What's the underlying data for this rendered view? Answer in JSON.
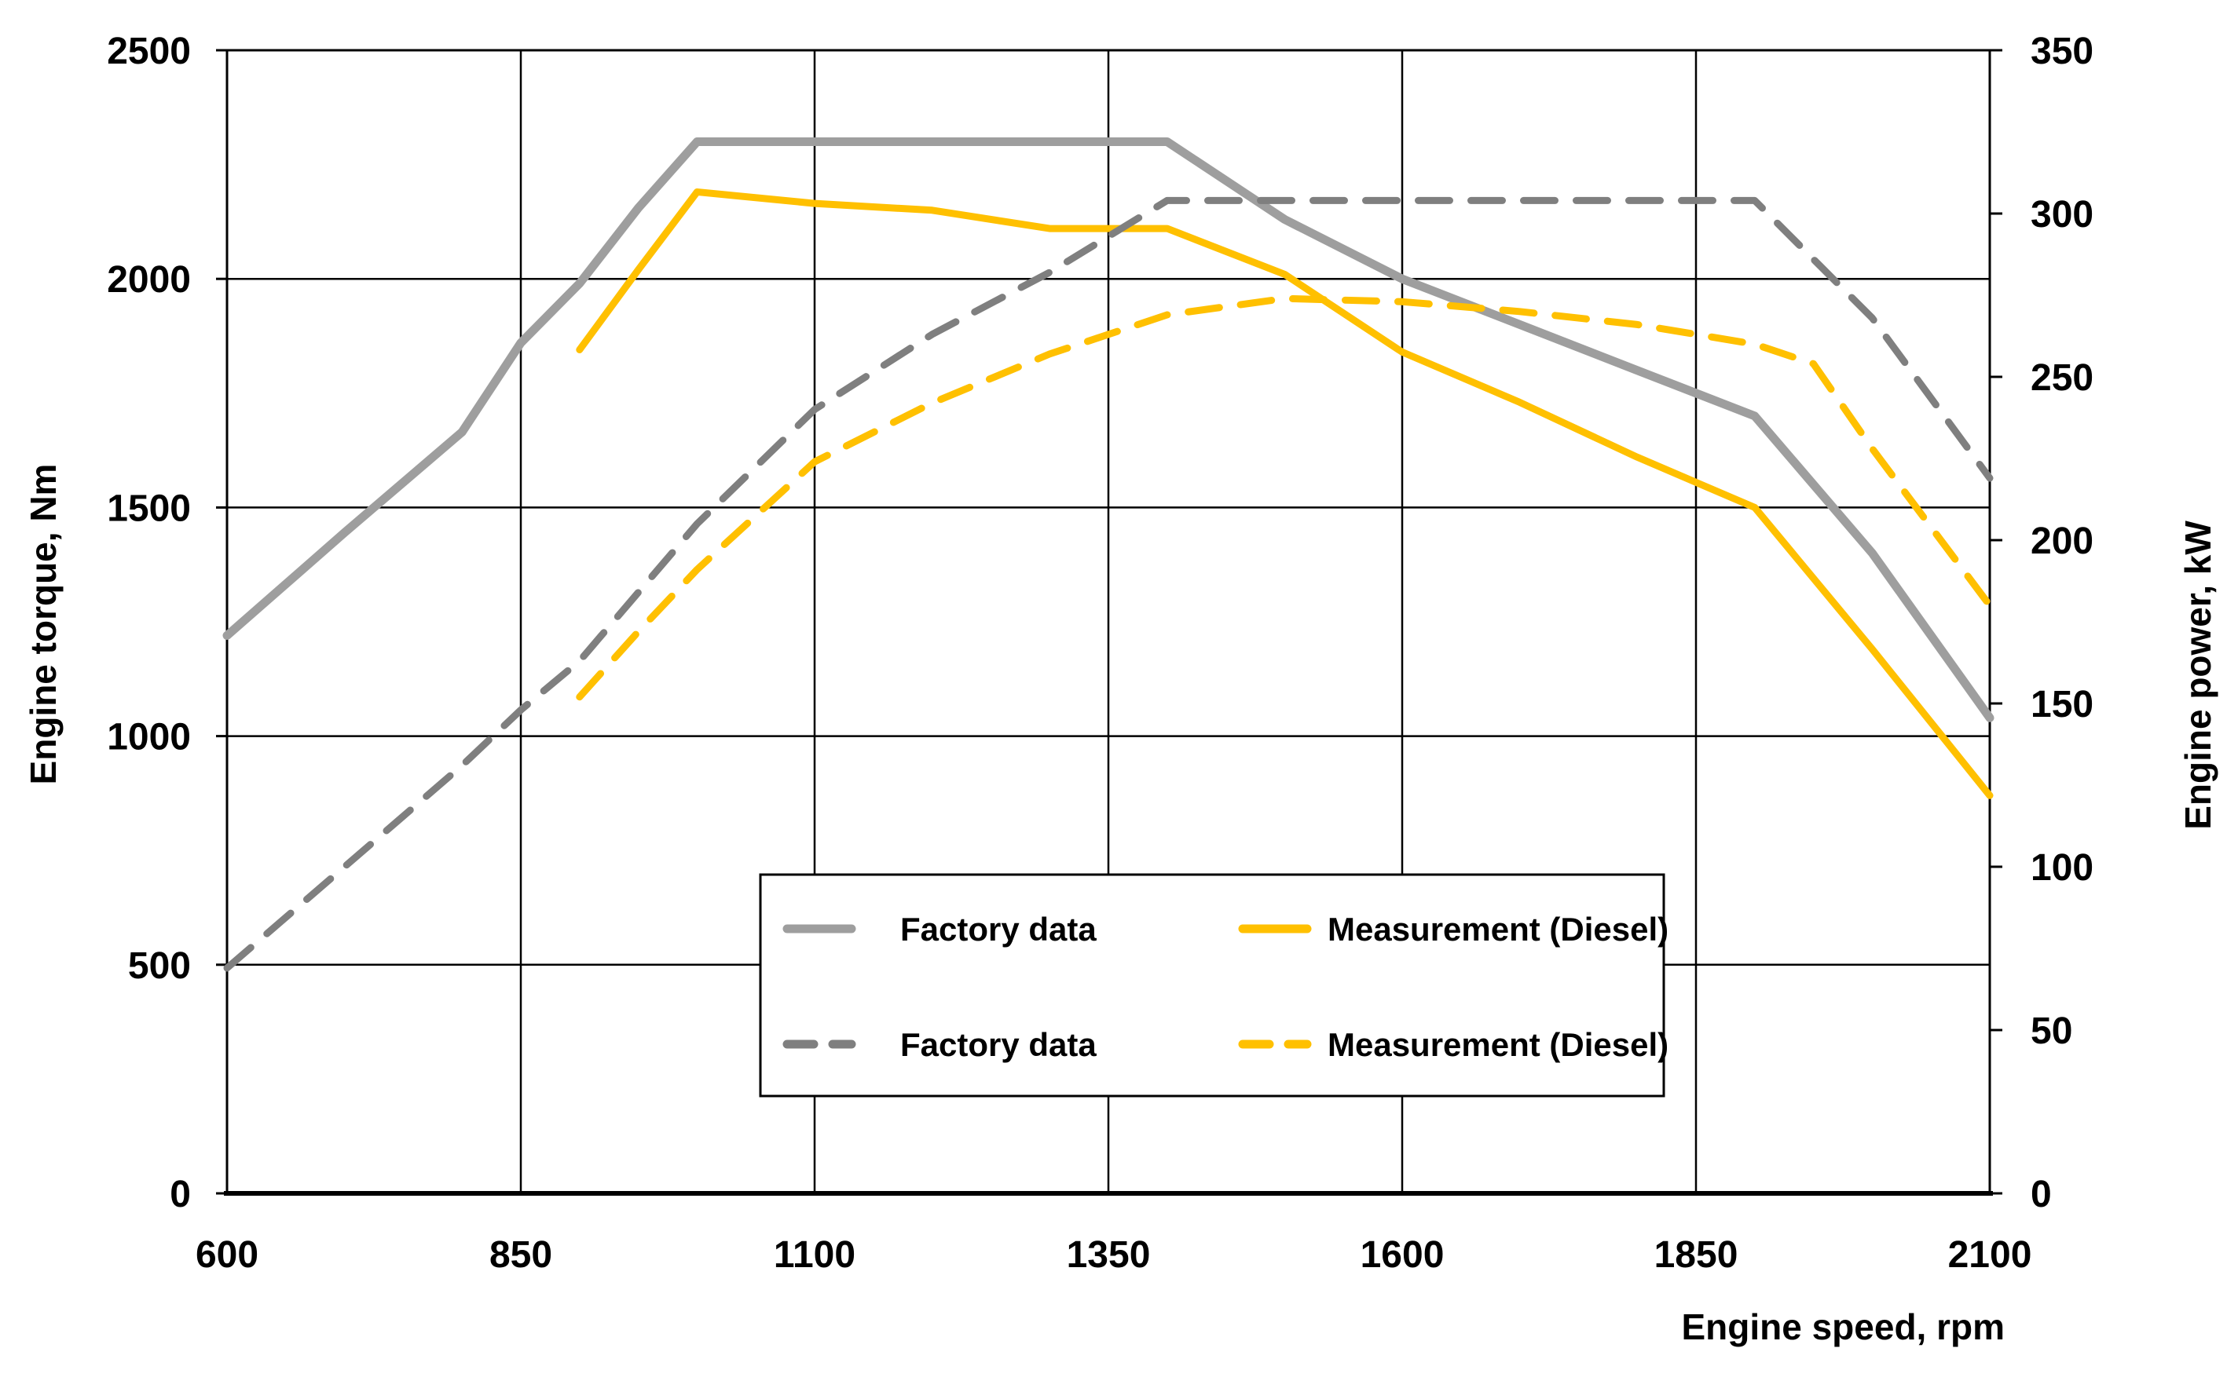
{
  "chart_data": {
    "type": "line",
    "title": "",
    "xlabel": "Engine speed, rpm",
    "ylabel_left": "Engine torque, Nm",
    "ylabel_right": "Engine power, kW",
    "grid": "on",
    "background": "#ffffff",
    "x": {
      "min": 600,
      "max": 2100,
      "ticks": [
        600,
        850,
        1100,
        1350,
        1600,
        1850,
        2100
      ]
    },
    "y_left": {
      "min": 0,
      "max": 2500,
      "ticks": [
        0,
        500,
        1000,
        1500,
        2000,
        2500
      ]
    },
    "y_right": {
      "min": 0,
      "max": 350,
      "ticks": [
        0,
        50,
        100,
        150,
        200,
        250,
        300,
        350
      ]
    },
    "colors": {
      "factory_solid": "#9E9E9E",
      "factory_dashed": "#7F7F7F",
      "measurement": "#FFC000",
      "axis": "#000000"
    },
    "series": [
      {
        "id": "factory-torque",
        "name": "Factory data",
        "axis": "left",
        "unit": "Nm",
        "style": "solid",
        "color": "#9E9E9E",
        "width": 11,
        "points": [
          [
            600,
            1220
          ],
          [
            700,
            1445
          ],
          [
            800,
            1665
          ],
          [
            850,
            1860
          ],
          [
            900,
            1990
          ],
          [
            950,
            2155
          ],
          [
            1000,
            2300
          ],
          [
            1400,
            2300
          ],
          [
            1500,
            2130
          ],
          [
            1600,
            2000
          ],
          [
            1700,
            1900
          ],
          [
            1800,
            1800
          ],
          [
            1900,
            1700
          ],
          [
            2000,
            1400
          ],
          [
            2100,
            1040
          ]
        ]
      },
      {
        "id": "measurement-torque",
        "name": "Measurement (Diesel)",
        "axis": "left",
        "unit": "Nm",
        "style": "solid",
        "color": "#FFC000",
        "width": 9,
        "points": [
          [
            900,
            1845
          ],
          [
            950,
            2020
          ],
          [
            1000,
            2190
          ],
          [
            1100,
            2165
          ],
          [
            1200,
            2150
          ],
          [
            1300,
            2110
          ],
          [
            1400,
            2110
          ],
          [
            1500,
            2010
          ],
          [
            1600,
            1840
          ],
          [
            1700,
            1730
          ],
          [
            1800,
            1610
          ],
          [
            1900,
            1500
          ],
          [
            2000,
            1190
          ],
          [
            2100,
            870
          ]
        ]
      },
      {
        "id": "factory-power",
        "name": "Factory data",
        "axis": "right",
        "unit": "kW",
        "style": "dashed",
        "color": "#7F7F7F",
        "width": 9,
        "points": [
          [
            600,
            69
          ],
          [
            700,
            100
          ],
          [
            800,
            131
          ],
          [
            850,
            148
          ],
          [
            900,
            163
          ],
          [
            1000,
            205
          ],
          [
            1100,
            240
          ],
          [
            1200,
            263
          ],
          [
            1300,
            282
          ],
          [
            1350,
            293
          ],
          [
            1400,
            304
          ],
          [
            1900,
            304
          ],
          [
            2000,
            268
          ],
          [
            2100,
            219
          ]
        ]
      },
      {
        "id": "measurement-power",
        "name": "Measurement (Diesel)",
        "axis": "right",
        "unit": "kW",
        "style": "dashed",
        "color": "#FFC000",
        "width": 9,
        "points": [
          [
            900,
            152
          ],
          [
            950,
            172
          ],
          [
            1000,
            191
          ],
          [
            1100,
            224
          ],
          [
            1200,
            242
          ],
          [
            1300,
            257
          ],
          [
            1400,
            269
          ],
          [
            1500,
            274
          ],
          [
            1600,
            273
          ],
          [
            1700,
            270
          ],
          [
            1800,
            266
          ],
          [
            1900,
            260
          ],
          [
            1950,
            254
          ],
          [
            2000,
            228
          ],
          [
            2100,
            180
          ]
        ]
      }
    ],
    "legend": {
      "position": "inside-bottom-center",
      "entries": [
        "Factory data",
        "Measurement (Diesel)",
        "Factory data",
        "Measurement (Diesel)"
      ]
    }
  }
}
